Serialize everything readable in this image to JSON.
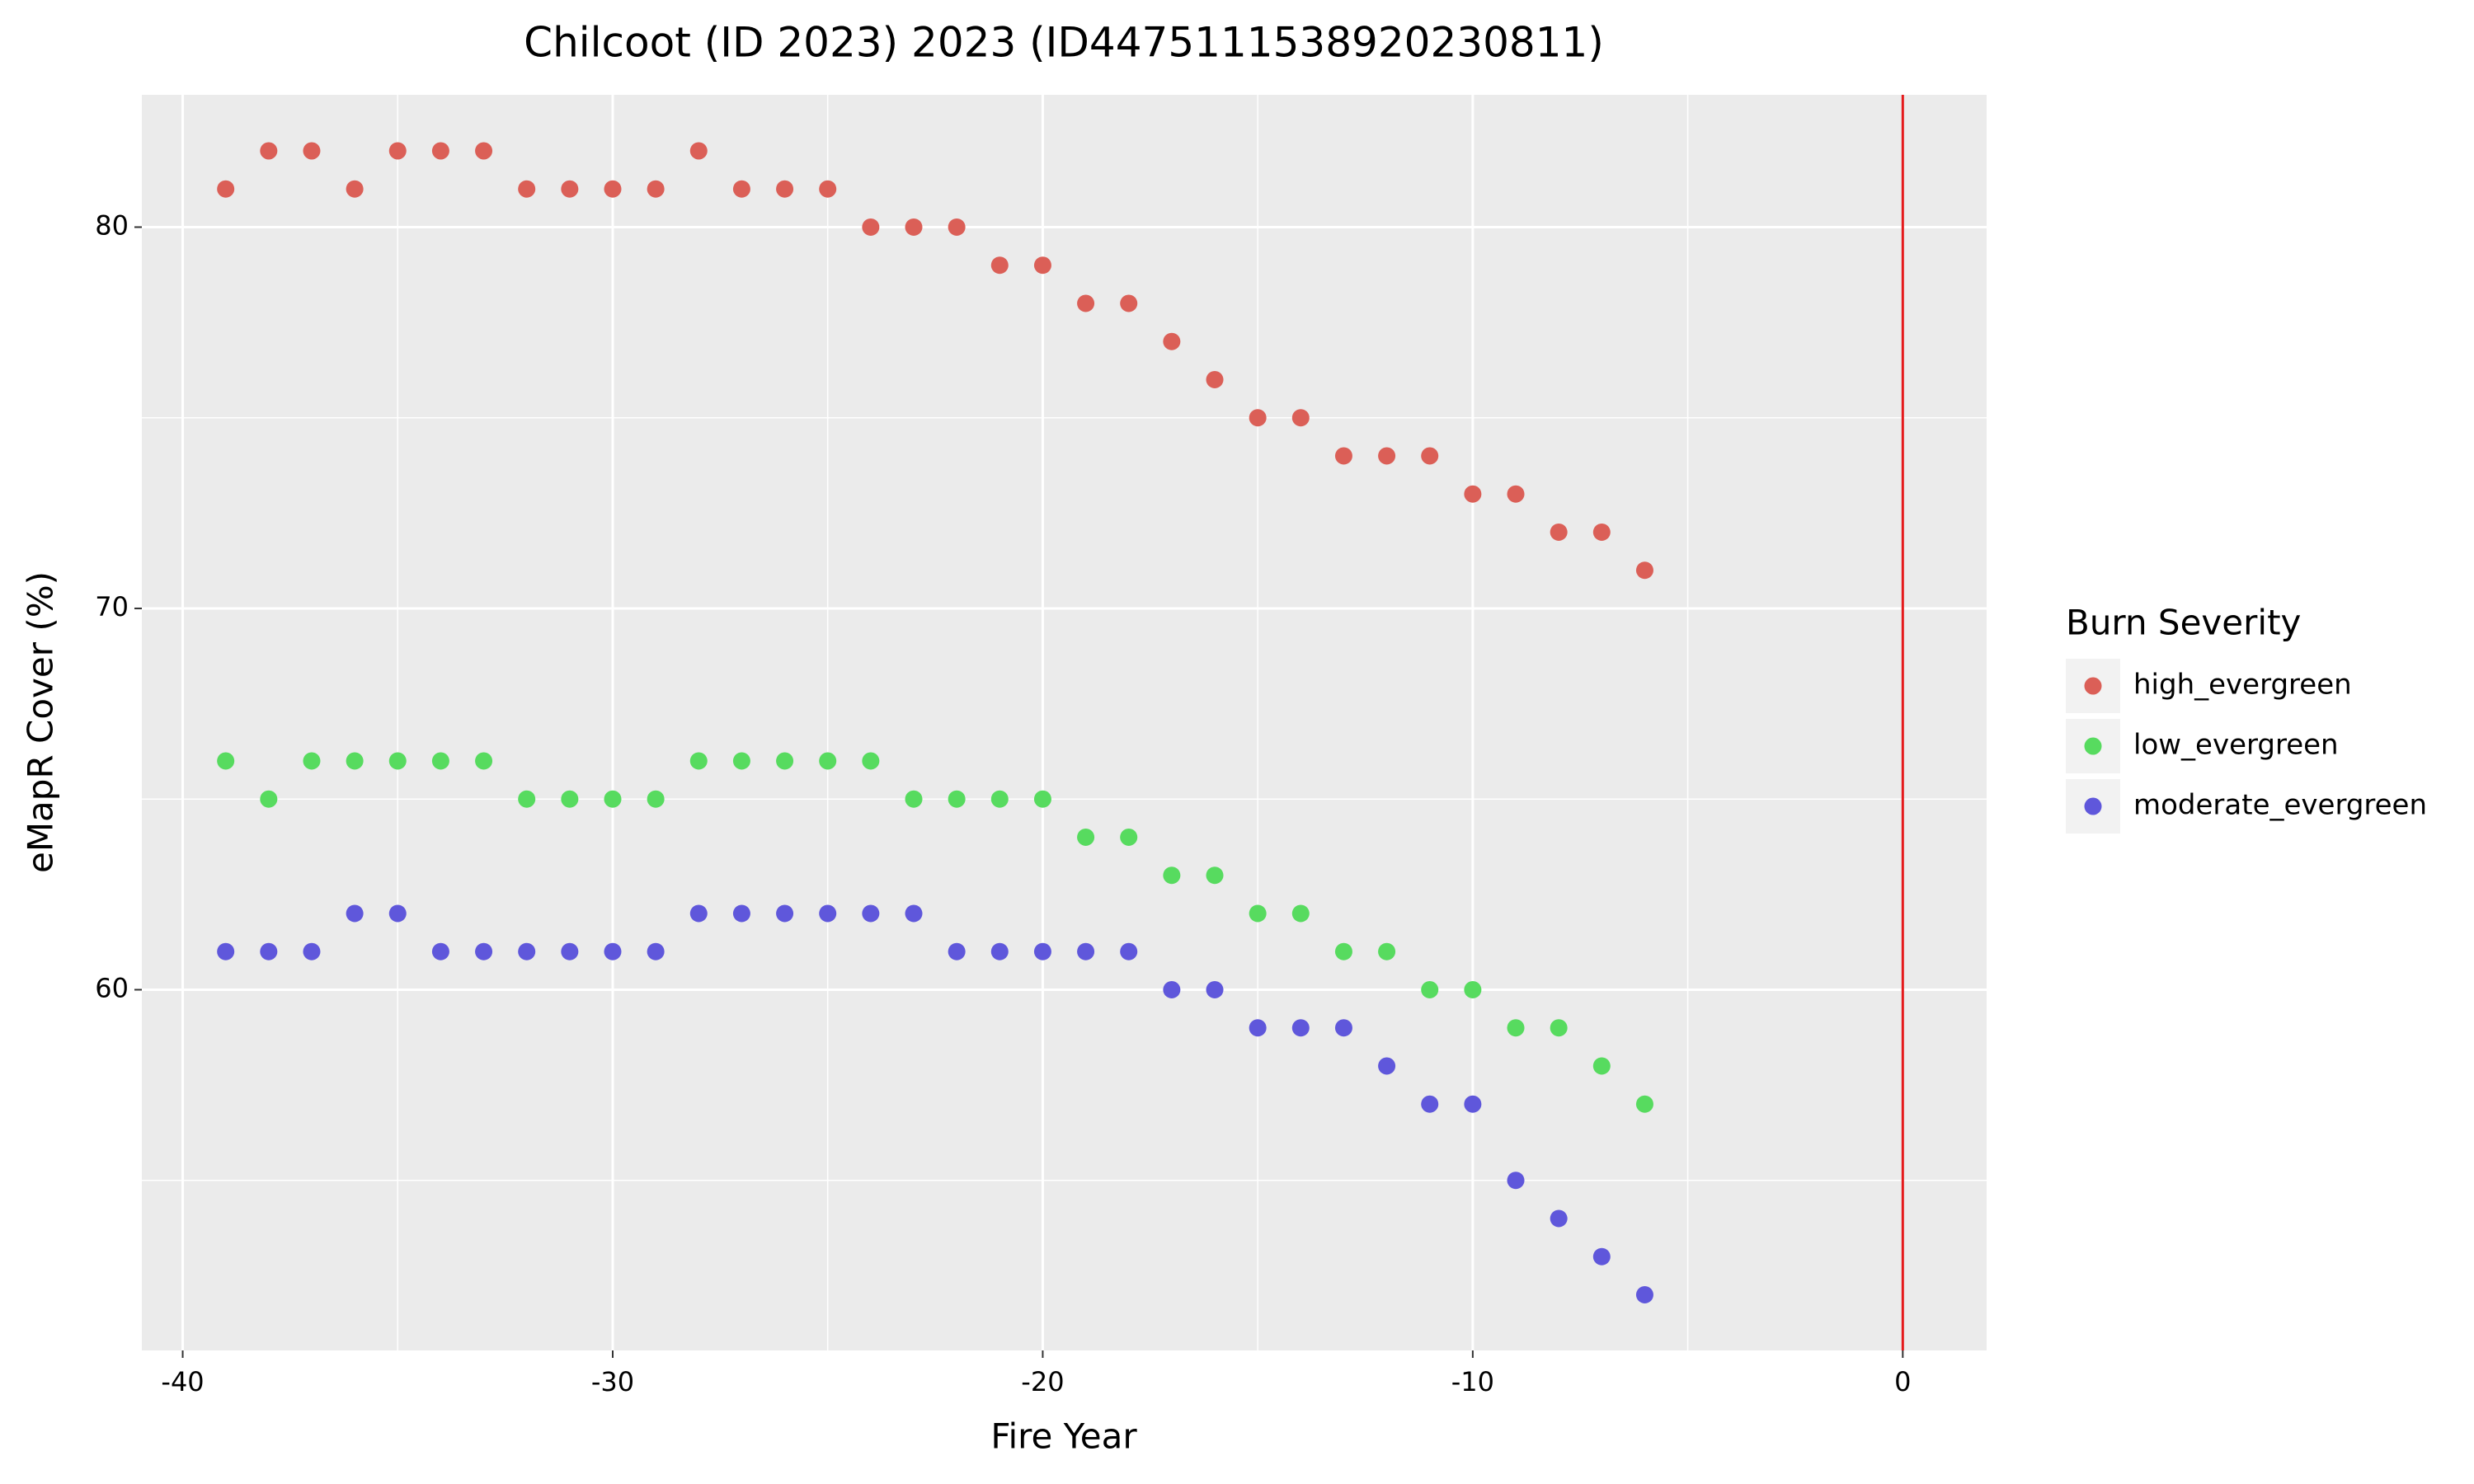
{
  "chart_data": {
    "type": "scatter",
    "title": "Chilcoot (ID 2023) 2023 (ID44751115389202308​11)",
    "x_label": "Fire Year",
    "y_label": "eMapR Cover (%)",
    "x": [
      -39,
      -38,
      -37,
      -36,
      -35,
      -34,
      -33,
      -32,
      -31,
      -30,
      -29,
      -28,
      -27,
      -26,
      -25,
      -24,
      -23,
      -22,
      -21,
      -20,
      -19,
      -18,
      -17,
      -16,
      -15,
      -14,
      -13,
      -12,
      -11,
      -10,
      -9,
      -8,
      -7,
      -6
    ],
    "series": [
      {
        "name": "high_evergreen",
        "color": "#db5f57",
        "values": [
          81,
          82,
          82,
          81,
          82,
          82,
          82,
          81,
          81,
          81,
          81,
          82,
          81,
          81,
          81,
          80,
          80,
          80,
          79,
          79,
          78,
          78,
          77,
          76,
          75,
          75,
          74,
          74,
          74,
          73,
          73,
          72,
          72,
          71
        ]
      },
      {
        "name": "low_evergreen",
        "color": "#57db5f",
        "values": [
          66,
          65,
          66,
          66,
          66,
          66,
          66,
          65,
          65,
          65,
          65,
          66,
          66,
          66,
          66,
          66,
          65,
          65,
          65,
          65,
          64,
          64,
          63,
          63,
          62,
          62,
          61,
          61,
          60,
          60,
          59,
          59,
          58,
          57
        ]
      },
      {
        "name": "moderate_evergreen",
        "color": "#5f57db",
        "values": [
          61,
          61,
          61,
          62,
          62,
          61,
          61,
          61,
          61,
          61,
          61,
          62,
          62,
          62,
          62,
          62,
          62,
          61,
          61,
          61,
          61,
          61,
          60,
          60,
          59,
          59,
          59,
          58,
          57,
          57,
          55,
          54,
          53,
          52
        ]
      }
    ],
    "legend_title": "Burn Severity",
    "legend": "right",
    "xlim": [
      -40.95,
      1.95
    ],
    "xticks": [
      -40,
      -30,
      -20,
      -10,
      0
    ],
    "ylim": [
      50.54,
      83.47
    ],
    "yticks": [
      60,
      70,
      80
    ],
    "grid": true,
    "vline": 0,
    "vline_color": "#e41a1c"
  }
}
